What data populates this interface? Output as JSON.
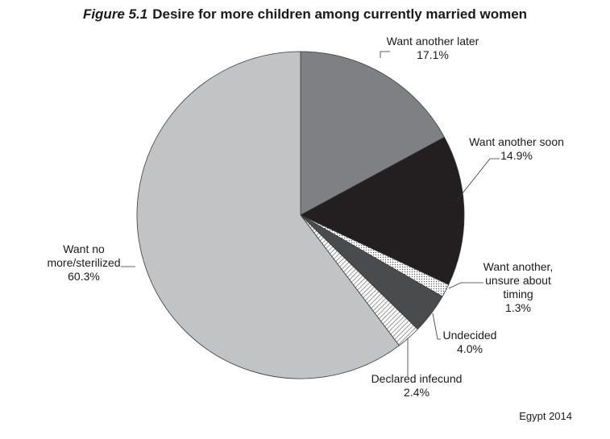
{
  "figure": {
    "number": "Figure 5.1",
    "title": "Desire for more children among currently married women",
    "source": "Egypt 2014"
  },
  "chart_data": {
    "type": "pie",
    "title": "Desire for more children among currently married women",
    "start_angle_deg": 0,
    "direction": "clockwise",
    "slices": [
      {
        "label": [
          "Want another later"
        ],
        "value": 17.1,
        "value_label": "17.1%",
        "color": "#7f8083",
        "pattern": "solid"
      },
      {
        "label": [
          "Want another soon"
        ],
        "value": 14.9,
        "value_label": "14.9%",
        "color": "#231f20",
        "pattern": "solid"
      },
      {
        "label": [
          "Want another,",
          "unsure about",
          "timing"
        ],
        "value": 1.3,
        "value_label": "1.3%",
        "color": "#ffffff",
        "pattern": "dots"
      },
      {
        "label": [
          "Undecided"
        ],
        "value": 4.0,
        "value_label": "4.0%",
        "color": "#4a4b4d",
        "pattern": "solid"
      },
      {
        "label": [
          "Declared infecund"
        ],
        "value": 2.4,
        "value_label": "2.4%",
        "color": "#ffffff",
        "pattern": "hatch"
      },
      {
        "label": [
          "Want no",
          "more/sterilized"
        ],
        "value": 60.3,
        "value_label": "60.3%",
        "color": "#c2c3c5",
        "pattern": "solid"
      }
    ]
  }
}
